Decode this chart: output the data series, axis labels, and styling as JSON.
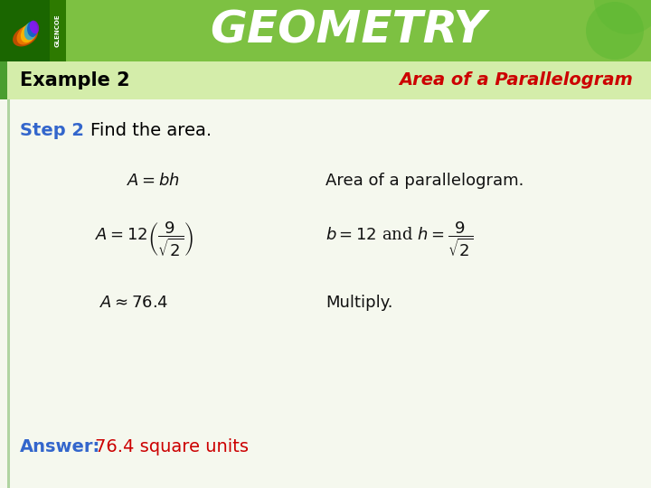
{
  "header_green_dark": "#4a9e2f",
  "header_green_light": "#7dc142",
  "header_text": "GEOMETRY",
  "header_text_color": "#ffffff",
  "subheader_bg": "#d4edaa",
  "example_label": "Example 2",
  "example_label_color": "#000000",
  "topic_title": "Area of a Parallelogram",
  "topic_title_color": "#cc0000",
  "step_label": "Step 2",
  "step_label_color": "#3366cc",
  "step_text": "Find the area.",
  "step_text_color": "#000000",
  "line1_left": "A = bh",
  "line1_right": "Area of a parallelogram.",
  "line2_left_pre": "A = 12",
  "line2_frac_num": "9",
  "line2_frac_den": "\\sqrt{2}",
  "line2_right_pre": "b = 12 and h =",
  "line2_right_frac_num": "9",
  "line2_right_frac_den": "\\sqrt{2}",
  "line3_left": "A \\approx 76.4",
  "line3_right": "Multiply.",
  "answer_label": "Answer:",
  "answer_label_color": "#3366cc",
  "answer_text": "76.4 square units",
  "answer_text_color": "#cc0000",
  "accent_bar_color": "#4a9e2f",
  "bg_color": "#ffffff",
  "content_bg": "#f0f5e8"
}
